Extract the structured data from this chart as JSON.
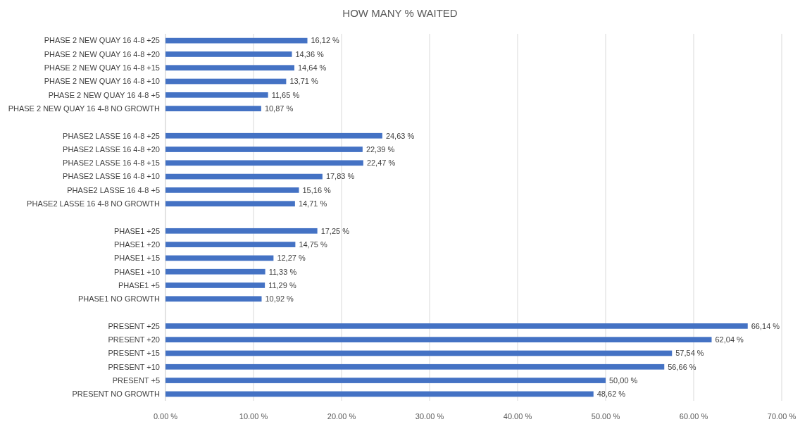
{
  "chart_data": {
    "type": "bar",
    "orientation": "horizontal",
    "title": "HOW MANY % WAITED",
    "categories": [
      "PHASE 2 NEW QUAY 16 4-8 +25",
      "PHASE 2 NEW QUAY 16 4-8 +20",
      "PHASE 2 NEW QUAY 16 4-8 +15",
      "PHASE 2 NEW QUAY 16 4-8 +10",
      "PHASE 2 NEW QUAY 16 4-8 +5",
      "PHASE 2 NEW QUAY 16 4-8 NO GROWTH",
      null,
      "PHASE2 LASSE 16 4-8 +25",
      "PHASE2 LASSE 16 4-8 +20",
      "PHASE2 LASSE 16 4-8 +15",
      "PHASE2 LASSE 16 4-8 +10",
      "PHASE2 LASSE 16 4-8 +5",
      "PHASE2 LASSE 16 4-8 NO GROWTH",
      null,
      "PHASE1 +25",
      "PHASE1 +20",
      "PHASE1 +15",
      "PHASE1 +10",
      "PHASE1 +5",
      "PHASE1 NO GROWTH",
      null,
      "PRESENT +25",
      "PRESENT +20",
      "PRESENT +15",
      "PRESENT +10",
      "PRESENT +5",
      "PRESENT NO GROWTH"
    ],
    "values": [
      16.12,
      14.36,
      14.64,
      13.71,
      11.65,
      10.87,
      null,
      24.63,
      22.39,
      22.47,
      17.83,
      15.16,
      14.71,
      null,
      17.25,
      14.75,
      12.27,
      11.33,
      11.29,
      10.92,
      null,
      66.14,
      62.04,
      57.54,
      56.66,
      50.0,
      48.62
    ],
    "value_labels": [
      "16,12 %",
      "14,36 %",
      "14,64 %",
      "13,71 %",
      "11,65 %",
      "10,87 %",
      null,
      "24,63 %",
      "22,39 %",
      "22,47 %",
      "17,83 %",
      "15,16 %",
      "14,71 %",
      null,
      "17,25 %",
      "14,75 %",
      "12,27 %",
      "11,33 %",
      "11,29 %",
      "10,92 %",
      null,
      "66,14 %",
      "62,04 %",
      "57,54 %",
      "56,66 %",
      "50,00 %",
      "48,62 %"
    ],
    "color": "#4472c4",
    "xlim": [
      0,
      70
    ],
    "xticks": [
      {
        "value": 0,
        "label": "0.00 %"
      },
      {
        "value": 10,
        "label": "10.00 %"
      },
      {
        "value": 20,
        "label": "20.00 %"
      },
      {
        "value": 30,
        "label": "30.00 %"
      },
      {
        "value": 40,
        "label": "40.00 %"
      },
      {
        "value": 50,
        "label": "50.00 %"
      },
      {
        "value": 60,
        "label": "60.00 %"
      },
      {
        "value": 70,
        "label": "70.00 %"
      }
    ],
    "grid": "x"
  }
}
